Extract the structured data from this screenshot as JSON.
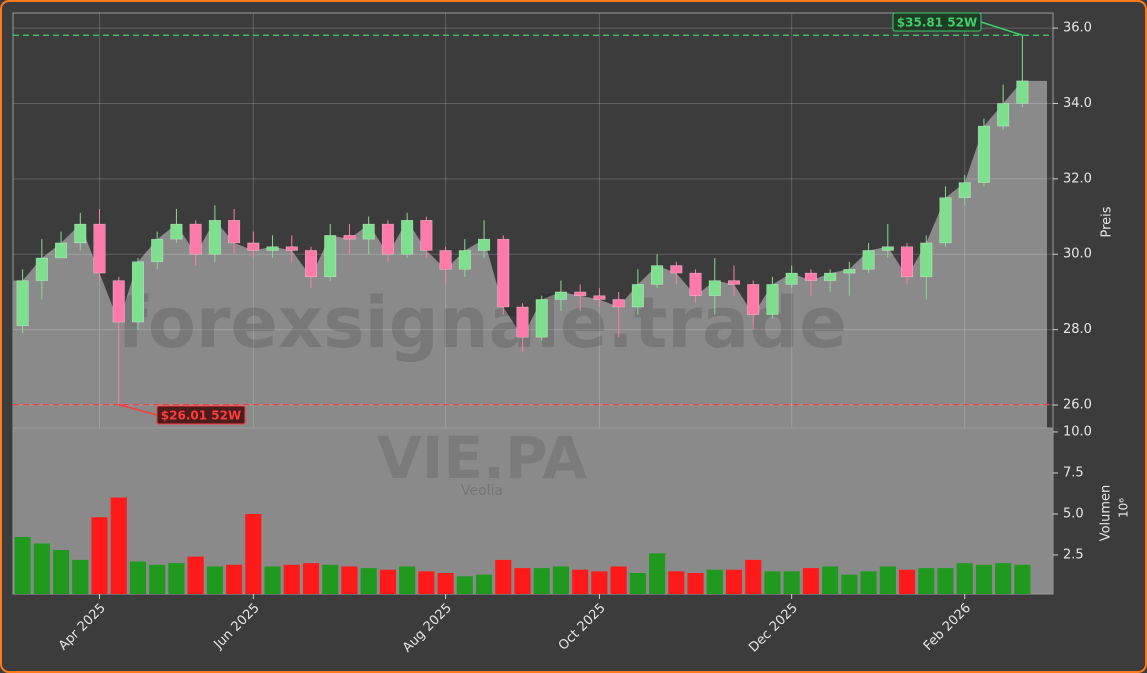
{
  "chart_data": [
    {
      "type": "candlestick",
      "watermark": "forexsignale.trade",
      "ylabel": "Preis",
      "ylim": [
        25.39,
        36.4
      ],
      "yticks": [
        {
          "value": 26,
          "label": "26.0"
        },
        {
          "value": 28,
          "label": "28.0"
        },
        {
          "value": 30,
          "label": "30.0"
        },
        {
          "value": 32,
          "label": "32.0"
        },
        {
          "value": 34,
          "label": "34.0"
        },
        {
          "value": 36,
          "label": "36.0"
        }
      ],
      "grid": true,
      "up_color": "#7ee08f",
      "down_color": "#ff7aa8",
      "area_color": "#8a8a8a",
      "open": [
        28.1,
        29.3,
        29.9,
        30.3,
        30.8,
        29.3,
        28.2,
        29.8,
        30.4,
        30.8,
        30.0,
        30.9,
        30.3,
        30.1,
        30.2,
        30.1,
        29.4,
        30.5,
        30.4,
        30.8,
        30.0,
        30.9,
        30.1,
        29.6,
        30.1,
        30.4,
        28.6,
        27.8,
        28.8,
        29.0,
        28.9,
        28.8,
        28.6,
        29.2,
        29.7,
        29.5,
        28.9,
        29.3,
        29.2,
        28.4,
        29.2,
        29.5,
        29.3,
        29.5,
        29.6,
        30.1,
        30.2,
        29.4,
        30.3,
        31.5,
        31.9,
        33.4,
        34.0
      ],
      "high": [
        29.6,
        30.4,
        30.6,
        31.1,
        31.2,
        29.4,
        29.9,
        30.6,
        31.2,
        30.9,
        31.3,
        31.2,
        30.6,
        30.5,
        30.5,
        30.2,
        30.8,
        30.8,
        31.0,
        30.9,
        31.1,
        31.0,
        30.2,
        30.4,
        30.9,
        30.5,
        28.7,
        28.9,
        29.3,
        29.2,
        29.1,
        29.0,
        29.6,
        30.0,
        29.8,
        29.6,
        29.9,
        29.7,
        29.3,
        29.4,
        29.7,
        29.6,
        29.6,
        29.8,
        30.3,
        30.8,
        30.3,
        30.5,
        31.8,
        32.1,
        33.6,
        34.5,
        35.81
      ],
      "low": [
        27.9,
        28.8,
        29.9,
        30.1,
        29.3,
        26.01,
        28.0,
        29.6,
        30.3,
        29.7,
        29.8,
        30.0,
        29.9,
        29.9,
        29.8,
        29.1,
        29.3,
        30.0,
        30.0,
        29.8,
        29.9,
        29.9,
        29.2,
        29.4,
        29.9,
        28.4,
        27.4,
        27.7,
        28.5,
        28.5,
        28.6,
        27.8,
        28.4,
        29.1,
        29.2,
        28.7,
        28.4,
        28.9,
        28.0,
        28.3,
        29.1,
        28.9,
        29.0,
        28.9,
        29.5,
        29.9,
        29.2,
        28.8,
        30.2,
        31.3,
        31.8,
        33.3,
        33.9
      ],
      "close": [
        29.3,
        29.9,
        30.3,
        30.8,
        29.5,
        28.2,
        29.8,
        30.4,
        30.8,
        30.0,
        30.9,
        30.3,
        30.1,
        30.2,
        30.1,
        29.4,
        30.5,
        30.4,
        30.8,
        30.0,
        30.9,
        30.1,
        29.6,
        30.1,
        30.4,
        28.6,
        27.8,
        28.8,
        29.0,
        28.9,
        28.8,
        28.6,
        29.2,
        29.7,
        29.5,
        28.9,
        29.3,
        29.2,
        28.4,
        29.2,
        29.5,
        29.3,
        29.5,
        29.6,
        30.1,
        30.2,
        29.4,
        30.3,
        31.5,
        31.9,
        33.4,
        34.0,
        34.6
      ],
      "annotations": [
        {
          "value": 35.81,
          "label": "$35.81 52W",
          "color": "#3ecf6a"
        },
        {
          "value": 26.01,
          "label": "$26.01 52W",
          "color": "#ff3b3b"
        }
      ]
    },
    {
      "type": "bar",
      "watermark": "VIE.PA",
      "subtitle": "Veolia",
      "ylabel": "Volumen",
      "scale_label": "10⁶",
      "ylim": [
        0.12,
        10.24
      ],
      "yticks": [
        2.5,
        {
          "value": 5,
          "label": "5.0"
        },
        7.5,
        {
          "value": 10,
          "label": "10.0"
        }
      ],
      "up_color": "#1f9a1f",
      "down_color": "#ff1a1a",
      "categories": [
        null,
        null,
        null,
        null,
        "Apr 2025",
        null,
        null,
        null,
        null,
        null,
        null,
        null,
        "Jun 2025",
        null,
        null,
        null,
        null,
        null,
        null,
        null,
        null,
        null,
        "Aug 2025",
        null,
        null,
        null,
        null,
        null,
        null,
        null,
        "Oct 2025",
        null,
        null,
        null,
        null,
        null,
        null,
        null,
        null,
        null,
        "Dec 2025",
        null,
        null,
        null,
        null,
        null,
        null,
        null,
        null,
        "Feb 2026",
        null,
        null,
        null
      ],
      "values": [
        3.6,
        3.2,
        2.8,
        2.2,
        4.8,
        6.0,
        2.1,
        1.9,
        2.0,
        2.4,
        1.8,
        1.9,
        5.0,
        1.8,
        1.9,
        2.0,
        1.9,
        1.8,
        1.7,
        1.6,
        1.8,
        1.5,
        1.4,
        1.2,
        1.3,
        2.2,
        1.7,
        1.7,
        1.8,
        1.6,
        1.5,
        1.8,
        1.4,
        2.6,
        1.5,
        1.4,
        1.6,
        1.6,
        2.2,
        1.5,
        1.5,
        1.7,
        1.8,
        1.3,
        1.5,
        1.8,
        1.6,
        1.7,
        1.7,
        2.0,
        1.9,
        2.0,
        1.9
      ]
    }
  ]
}
